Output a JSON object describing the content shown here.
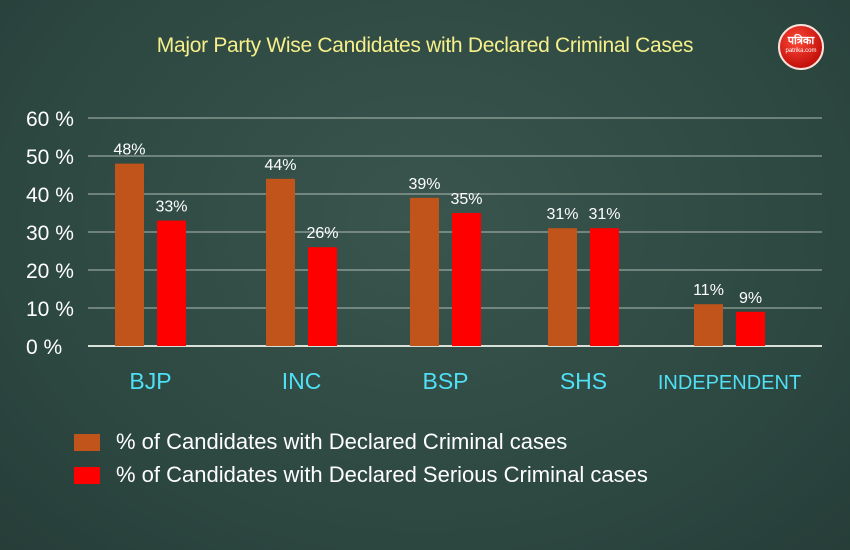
{
  "branding": {
    "logo_text": "पत्रिका",
    "logo_sub": "patrika.com"
  },
  "chart_data": {
    "type": "bar",
    "title": "Major Party Wise Candidates with Declared Criminal Cases",
    "categories": [
      "BJP",
      "INC",
      "BSP",
      "SHS",
      "INDEPENDENT"
    ],
    "series": [
      {
        "name": "% of Candidates with Declared Criminal cases",
        "values": [
          48,
          44,
          39,
          31,
          11
        ],
        "labels": [
          "48%",
          "44%",
          "39%",
          "31%",
          "11%"
        ],
        "color": "#c0541a"
      },
      {
        "name": "% of Candidates with Declared Serious Criminal cases",
        "values": [
          33,
          26,
          35,
          31,
          9
        ],
        "labels": [
          "33%",
          "26%",
          "35%",
          "31%",
          "9%"
        ],
        "color": "#ff0000"
      }
    ],
    "ylim": [
      0,
      60
    ],
    "yticks": [
      0,
      10,
      20,
      30,
      40,
      50,
      60
    ],
    "ytick_labels": [
      "0 %",
      "10 %",
      "20 %",
      "30 %",
      "40 %",
      "50 %",
      "60 %"
    ],
    "grid": true,
    "legend_position": "bottom-left",
    "colors": {
      "category_label": "#4fe0f5",
      "grid": "#d8e0d8",
      "value_label": "#ffffff"
    }
  }
}
